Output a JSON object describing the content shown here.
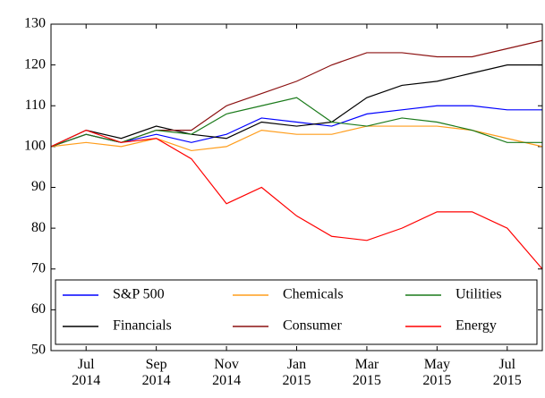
{
  "chart_data": {
    "type": "line",
    "x": [
      "2014-06",
      "2014-07",
      "2014-08",
      "2014-09",
      "2014-10",
      "2014-11",
      "2014-12",
      "2015-01",
      "2015-02",
      "2015-03",
      "2015-04",
      "2015-05",
      "2015-06",
      "2015-07",
      "2015-08"
    ],
    "series": [
      {
        "name": "S&P 500",
        "color": "#0000ff",
        "values": [
          100,
          103,
          101,
          103,
          101,
          103,
          107,
          106,
          105,
          108,
          109,
          110,
          110,
          109,
          109
        ]
      },
      {
        "name": "Financials",
        "color": "#000000",
        "values": [
          100,
          104,
          102,
          105,
          103,
          102,
          106,
          105,
          106,
          112,
          115,
          116,
          118,
          120,
          120
        ]
      },
      {
        "name": "Chemicals",
        "color": "#ff9d1c",
        "values": [
          100,
          101,
          100,
          102,
          99,
          100,
          104,
          103,
          103,
          105,
          105,
          105,
          104,
          102,
          100
        ]
      },
      {
        "name": "Consumer",
        "color": "#8b1010",
        "values": [
          100,
          103,
          101,
          104,
          104,
          110,
          113,
          116,
          120,
          123,
          123,
          122,
          122,
          124,
          126
        ]
      },
      {
        "name": "Utilities",
        "color": "#1a7a1a",
        "values": [
          100,
          103,
          101,
          104,
          103,
          108,
          110,
          112,
          106,
          105,
          107,
          106,
          104,
          101,
          101
        ]
      },
      {
        "name": "Energy",
        "color": "#ff0000",
        "values": [
          100,
          104,
          101,
          102,
          97,
          86,
          90,
          83,
          78,
          77,
          80,
          84,
          84,
          80,
          70
        ]
      }
    ],
    "xlim": [
      "2014-06",
      "2015-08"
    ],
    "xticks": [
      {
        "value": "2014-07",
        "label": "Jul 2014"
      },
      {
        "value": "2014-09",
        "label": "Sep 2014"
      },
      {
        "value": "2014-11",
        "label": "Nov 2014"
      },
      {
        "value": "2015-01",
        "label": "Jan 2015"
      },
      {
        "value": "2015-03",
        "label": "Mar 2015"
      },
      {
        "value": "2015-05",
        "label": "May 2015"
      },
      {
        "value": "2015-07",
        "label": "Jul 2015"
      }
    ],
    "ylim": [
      50,
      130
    ],
    "yticks": [
      50,
      60,
      70,
      80,
      90,
      100,
      110,
      120,
      130
    ],
    "legend": "lower center",
    "legend_columns": 3
  }
}
